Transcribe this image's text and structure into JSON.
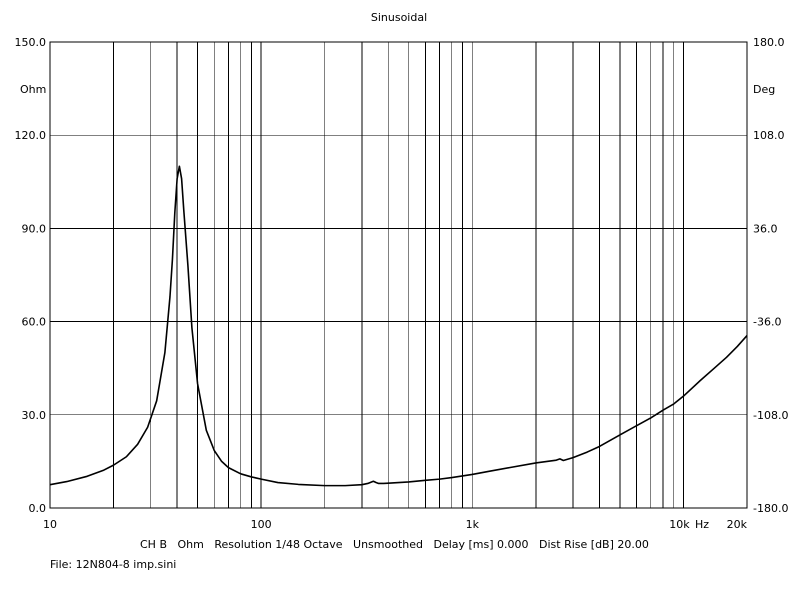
{
  "chart_data": {
    "type": "line",
    "title": "Sinusoidal",
    "x_scale": "log",
    "xlim": [
      10,
      20000
    ],
    "ylim": [
      0,
      150
    ],
    "y2lim": [
      -180,
      180
    ],
    "grid": true,
    "xlabel": "Hz",
    "ylabel": "Ohm",
    "y2label": "Deg",
    "x_ticks": [
      {
        "value": 10,
        "label": "10"
      },
      {
        "value": 100,
        "label": "100"
      },
      {
        "value": 1000,
        "label": "1k"
      },
      {
        "value": 10000,
        "label": "10k"
      },
      {
        "value": 20000,
        "label": "20k"
      }
    ],
    "y_ticks": [
      "0.0",
      "30.0",
      "60.0",
      "90.0",
      "120.0",
      "150.0"
    ],
    "y2_ticks": [
      "-180.0",
      "-108.0",
      "-36.0",
      "36.0",
      "108.0",
      "180.0"
    ],
    "series": [
      {
        "name": "",
        "color": "#000000",
        "x": [
          10,
          12,
          15,
          18,
          20,
          23,
          26,
          29,
          32,
          35,
          37,
          38,
          39,
          40,
          41,
          42,
          43,
          45,
          47,
          50,
          55,
          60,
          65,
          70,
          80,
          90,
          100,
          120,
          150,
          200,
          250,
          300,
          320,
          340,
          350,
          360,
          380,
          400,
          500,
          600,
          700,
          800,
          1000,
          1200,
          1500,
          2000,
          2500,
          2600,
          2700,
          2800,
          3000,
          3500,
          4000,
          5000,
          6000,
          7000,
          8000,
          9000,
          10000,
          12000,
          14000,
          16000,
          18000,
          20000
        ],
        "y": [
          7.5,
          8.5,
          10.2,
          12.2,
          13.8,
          16.5,
          20.5,
          26,
          34.5,
          50,
          68,
          80,
          95,
          106,
          110,
          106,
          96,
          78,
          58,
          40,
          25,
          18.5,
          15,
          13,
          11,
          10,
          9.3,
          8.2,
          7.6,
          7.2,
          7.2,
          7.5,
          7.9,
          8.6,
          8.2,
          7.9,
          7.9,
          8.0,
          8.4,
          8.9,
          9.3,
          9.8,
          10.8,
          11.8,
          13.0,
          14.5,
          15.4,
          15.8,
          15.3,
          15.6,
          16.2,
          18.0,
          19.8,
          23.5,
          26.5,
          29.0,
          31.5,
          33.5,
          36.0,
          41.0,
          45.0,
          48.5,
          52.0,
          55.5
        ]
      }
    ]
  },
  "footer": {
    "settings": "CH B   Ohm   Resolution 1/48 Octave   Unsmoothed   Delay [ms] 0.000   Dist Rise [dB] 20.00",
    "file": "File: 12N804-8 imp.sini"
  }
}
